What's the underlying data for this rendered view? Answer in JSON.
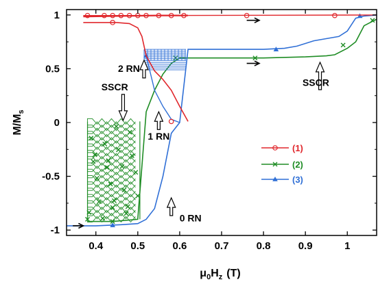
{
  "chart_data": {
    "type": "line",
    "xlabel_main": "μ",
    "xlabel_sub1": "0",
    "xlabel_h": "H",
    "xlabel_sub2": "z",
    "xlabel_unit": "(T)",
    "ylabel_main": "M / M",
    "ylabel_sub": "s",
    "xlim": [
      0.33,
      1.07
    ],
    "ylim": [
      -1.05,
      1.05
    ],
    "xticks": [
      0.4,
      0.5,
      0.6,
      0.7,
      0.8,
      0.9,
      1.0
    ],
    "xtick_labels": [
      "0.4",
      "0.5",
      "0.6",
      "0.7",
      "0.8",
      "0.9",
      "1"
    ],
    "yticks": [
      -1,
      -0.5,
      0,
      0.5,
      1
    ],
    "ytick_labels": [
      "-1",
      "-0.5",
      "0",
      "0.5",
      "1"
    ],
    "colors": {
      "s1": "#e0262b",
      "s2": "#1e8c24",
      "s3": "#2f6fd6"
    },
    "series": [
      {
        "name": "(1)",
        "color": "#e0262b",
        "marker": "circle",
        "x": [
          0.37,
          0.4,
          0.45,
          0.48,
          0.5,
          0.51,
          0.52,
          0.54,
          0.56,
          0.58,
          0.6,
          0.62,
          0.7,
          0.8,
          0.9,
          1.0,
          1.07
        ],
        "y": [
          0.93,
          0.93,
          0.93,
          0.92,
          0.88,
          0.8,
          0.62,
          0.48,
          0.4,
          0.3,
          0.15,
          0.01,
          0.99,
          0.995,
          0.997,
          0.999,
          1.0
        ],
        "top_x": [
          0.37,
          0.45,
          0.55,
          0.62
        ],
        "top_y": [
          0.985,
          0.99,
          0.995,
          0.995
        ]
      },
      {
        "name": "(2)",
        "color": "#1e8c24",
        "marker": "x",
        "x": [
          0.38,
          0.44,
          0.5,
          0.52,
          0.54,
          0.56,
          0.58,
          0.6,
          0.7,
          0.8,
          0.9,
          0.95,
          0.97,
          1.0,
          1.02,
          1.04,
          1.07
        ],
        "y": [
          -0.92,
          -0.92,
          -0.9,
          0.1,
          0.3,
          0.45,
          0.55,
          0.6,
          0.6,
          0.6,
          0.61,
          0.62,
          0.63,
          0.69,
          0.75,
          0.9,
          0.96
        ],
        "band_x": [
          0.38,
          0.505
        ],
        "band_y": [
          -0.9,
          0.01
        ]
      },
      {
        "name": "(3)",
        "color": "#2f6fd6",
        "marker": "triangle",
        "x": [
          0.33,
          0.4,
          0.46,
          0.5,
          0.52,
          0.54,
          0.56,
          0.58,
          0.6,
          0.62,
          0.7,
          0.8,
          0.85,
          0.88,
          0.92,
          0.98,
          1.0,
          1.02,
          1.04,
          1.07
        ],
        "y": [
          -0.96,
          -0.96,
          -0.95,
          -0.94,
          -0.9,
          -0.8,
          -0.5,
          -0.1,
          0.0,
          0.68,
          0.68,
          0.68,
          0.69,
          0.71,
          0.76,
          0.8,
          0.85,
          0.97,
          0.99,
          1.0
        ],
        "mid_x": [
          0.52,
          0.54,
          0.56,
          0.58,
          0.6
        ],
        "mid_y": [
          0.62,
          0.3,
          0.15,
          0.03,
          0.0
        ],
        "band_x": [
          0.515,
          0.615
        ],
        "band_y": [
          0.49,
          0.68
        ]
      }
    ],
    "annotations": [
      {
        "text": "2 RN",
        "x": 0.515,
        "y": 0.45
      },
      {
        "text": "1 RN",
        "x": 0.55,
        "y": -0.04
      },
      {
        "text": "0 RN",
        "x": 0.58,
        "y": -0.82
      },
      {
        "text": "SSCR",
        "x": 0.465,
        "y": 0.27
      },
      {
        "text": "SSCR",
        "x": 0.935,
        "y": 0.42
      }
    ],
    "legend_position": "center-right"
  }
}
